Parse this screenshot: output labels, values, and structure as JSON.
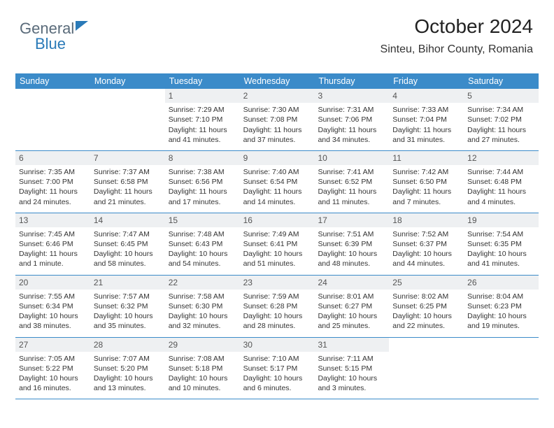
{
  "logo": {
    "text1": "General",
    "text2": "Blue"
  },
  "header": {
    "month": "October 2024",
    "location": "Sinteu, Bihor County, Romania"
  },
  "colors": {
    "headerBar": "#3b8bc9",
    "dayNumBg": "#eef0f2",
    "border": "#3b8bc9"
  },
  "dayNames": [
    "Sunday",
    "Monday",
    "Tuesday",
    "Wednesday",
    "Thursday",
    "Friday",
    "Saturday"
  ],
  "weeks": [
    [
      null,
      null,
      {
        "n": "1",
        "sr": "7:29 AM",
        "ss": "7:10 PM",
        "dl": "11 hours and 41 minutes."
      },
      {
        "n": "2",
        "sr": "7:30 AM",
        "ss": "7:08 PM",
        "dl": "11 hours and 37 minutes."
      },
      {
        "n": "3",
        "sr": "7:31 AM",
        "ss": "7:06 PM",
        "dl": "11 hours and 34 minutes."
      },
      {
        "n": "4",
        "sr": "7:33 AM",
        "ss": "7:04 PM",
        "dl": "11 hours and 31 minutes."
      },
      {
        "n": "5",
        "sr": "7:34 AM",
        "ss": "7:02 PM",
        "dl": "11 hours and 27 minutes."
      }
    ],
    [
      {
        "n": "6",
        "sr": "7:35 AM",
        "ss": "7:00 PM",
        "dl": "11 hours and 24 minutes."
      },
      {
        "n": "7",
        "sr": "7:37 AM",
        "ss": "6:58 PM",
        "dl": "11 hours and 21 minutes."
      },
      {
        "n": "8",
        "sr": "7:38 AM",
        "ss": "6:56 PM",
        "dl": "11 hours and 17 minutes."
      },
      {
        "n": "9",
        "sr": "7:40 AM",
        "ss": "6:54 PM",
        "dl": "11 hours and 14 minutes."
      },
      {
        "n": "10",
        "sr": "7:41 AM",
        "ss": "6:52 PM",
        "dl": "11 hours and 11 minutes."
      },
      {
        "n": "11",
        "sr": "7:42 AM",
        "ss": "6:50 PM",
        "dl": "11 hours and 7 minutes."
      },
      {
        "n": "12",
        "sr": "7:44 AM",
        "ss": "6:48 PM",
        "dl": "11 hours and 4 minutes."
      }
    ],
    [
      {
        "n": "13",
        "sr": "7:45 AM",
        "ss": "6:46 PM",
        "dl": "11 hours and 1 minute."
      },
      {
        "n": "14",
        "sr": "7:47 AM",
        "ss": "6:45 PM",
        "dl": "10 hours and 58 minutes."
      },
      {
        "n": "15",
        "sr": "7:48 AM",
        "ss": "6:43 PM",
        "dl": "10 hours and 54 minutes."
      },
      {
        "n": "16",
        "sr": "7:49 AM",
        "ss": "6:41 PM",
        "dl": "10 hours and 51 minutes."
      },
      {
        "n": "17",
        "sr": "7:51 AM",
        "ss": "6:39 PM",
        "dl": "10 hours and 48 minutes."
      },
      {
        "n": "18",
        "sr": "7:52 AM",
        "ss": "6:37 PM",
        "dl": "10 hours and 44 minutes."
      },
      {
        "n": "19",
        "sr": "7:54 AM",
        "ss": "6:35 PM",
        "dl": "10 hours and 41 minutes."
      }
    ],
    [
      {
        "n": "20",
        "sr": "7:55 AM",
        "ss": "6:34 PM",
        "dl": "10 hours and 38 minutes."
      },
      {
        "n": "21",
        "sr": "7:57 AM",
        "ss": "6:32 PM",
        "dl": "10 hours and 35 minutes."
      },
      {
        "n": "22",
        "sr": "7:58 AM",
        "ss": "6:30 PM",
        "dl": "10 hours and 32 minutes."
      },
      {
        "n": "23",
        "sr": "7:59 AM",
        "ss": "6:28 PM",
        "dl": "10 hours and 28 minutes."
      },
      {
        "n": "24",
        "sr": "8:01 AM",
        "ss": "6:27 PM",
        "dl": "10 hours and 25 minutes."
      },
      {
        "n": "25",
        "sr": "8:02 AM",
        "ss": "6:25 PM",
        "dl": "10 hours and 22 minutes."
      },
      {
        "n": "26",
        "sr": "8:04 AM",
        "ss": "6:23 PM",
        "dl": "10 hours and 19 minutes."
      }
    ],
    [
      {
        "n": "27",
        "sr": "7:05 AM",
        "ss": "5:22 PM",
        "dl": "10 hours and 16 minutes."
      },
      {
        "n": "28",
        "sr": "7:07 AM",
        "ss": "5:20 PM",
        "dl": "10 hours and 13 minutes."
      },
      {
        "n": "29",
        "sr": "7:08 AM",
        "ss": "5:18 PM",
        "dl": "10 hours and 10 minutes."
      },
      {
        "n": "30",
        "sr": "7:10 AM",
        "ss": "5:17 PM",
        "dl": "10 hours and 6 minutes."
      },
      {
        "n": "31",
        "sr": "7:11 AM",
        "ss": "5:15 PM",
        "dl": "10 hours and 3 minutes."
      },
      null,
      null
    ]
  ],
  "labels": {
    "sunrise": "Sunrise: ",
    "sunset": "Sunset: ",
    "daylight": "Daylight: "
  }
}
